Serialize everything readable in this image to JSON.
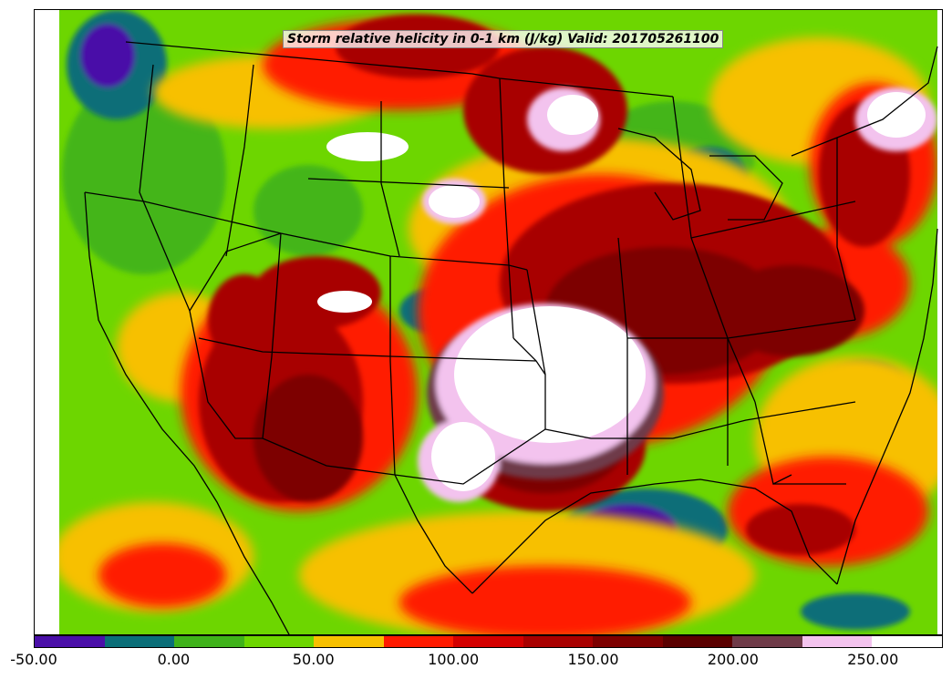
{
  "title": "Storm relative helicity in 0-1 km (J/kg) Valid: 201705261100",
  "colorbar": {
    "min": -50,
    "max": 275,
    "step": 25,
    "colors": [
      "#4a0fa8",
      "#0a6e78",
      "#3fb21a",
      "#6dd600",
      "#f7c000",
      "#ff1a00",
      "#d40000",
      "#a80000",
      "#7d0000",
      "#5a0000",
      "#6e3a48",
      "#f3c3ee",
      "#ffffff"
    ],
    "tick_labels": [
      "-50.00",
      "0.00",
      "50.00",
      "100.00",
      "150.00",
      "200.00",
      "250.00"
    ],
    "tick_values": [
      -50,
      0,
      50,
      100,
      150,
      200,
      250
    ]
  },
  "map": {
    "region": "Continental United States",
    "features": [
      "state boundaries",
      "coastlines",
      "national borders"
    ]
  }
}
